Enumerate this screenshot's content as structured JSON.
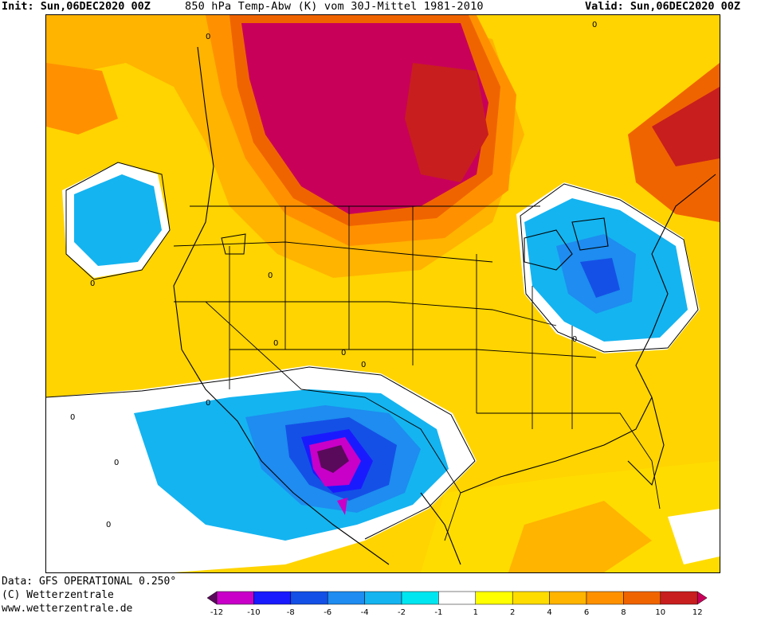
{
  "header": {
    "init": "Init: Sun,06DEC2020 00Z",
    "title": "850 hPa Temp-Abw (K) vom 30J-Mittel 1981-2010",
    "valid": "Valid: Sun,06DEC2020 00Z"
  },
  "footer": {
    "data_source": "Data: GFS OPERATIONAL 0.250°",
    "copyright": "(C) Wetterzentrale",
    "website": "www.wetterzentrale.de"
  },
  "contour_labels": [
    "0",
    "0",
    "0",
    "0",
    "0",
    "0",
    "0",
    "0",
    "0",
    "0",
    "0",
    "0"
  ],
  "legend": {
    "ticks": [
      "-12",
      "-10",
      "-8",
      "-6",
      "-4",
      "-2",
      "-1",
      "1",
      "2",
      "4",
      "6",
      "8",
      "10",
      "12"
    ],
    "colors": [
      "#5a0a5a",
      "#c800c8",
      "#1a1aff",
      "#1450e6",
      "#1e8cf0",
      "#14b4f0",
      "#00e6f0",
      "#ffffff",
      "#ffff00",
      "#ffdc00",
      "#ffb400",
      "#ff9100",
      "#f06400",
      "#c81e1e",
      "#c8005a"
    ]
  },
  "colors": {
    "warm_extreme": "#c8005a",
    "cold_extreme": "#5a0a5a",
    "neutral": "#ffffff"
  }
}
